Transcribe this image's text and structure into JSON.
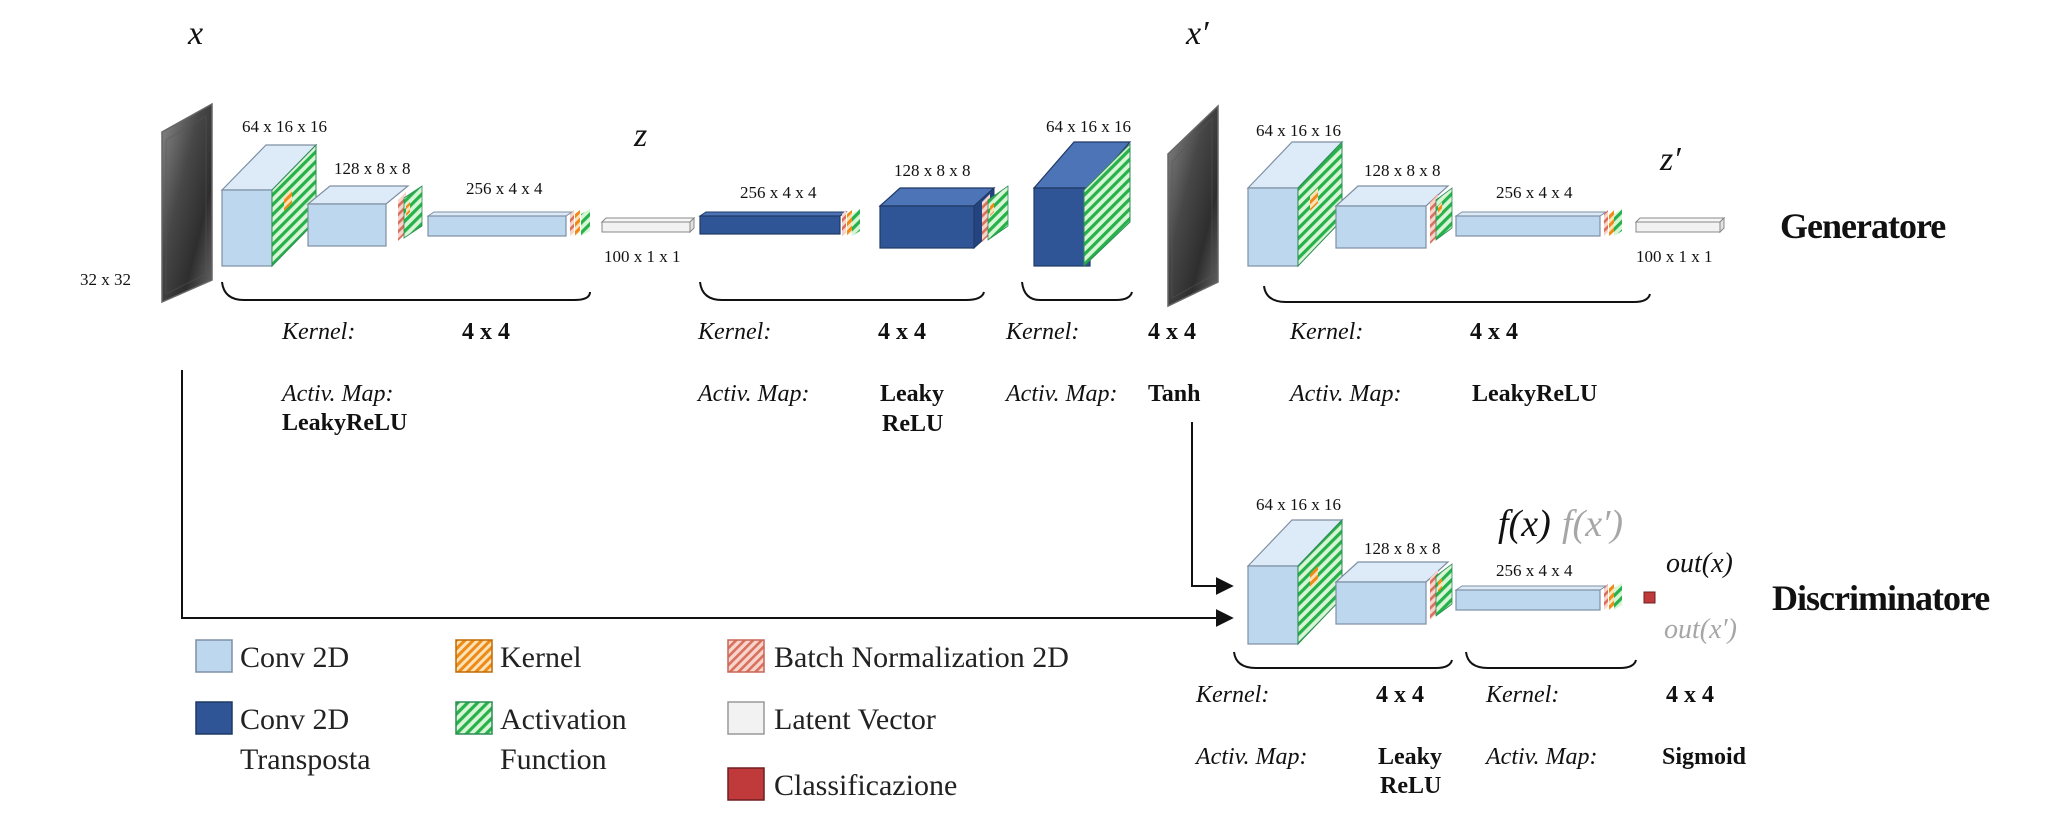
{
  "inputs": {
    "x": "x",
    "x_prime": "x′",
    "z": "z",
    "z_prime": "z′",
    "input_size": "32 x 32"
  },
  "dims": {
    "d64": "64 x 16 x 16",
    "d128": "128 x 8 x 8",
    "d256": "256 x 4 x 4",
    "d100": "100 x 1 x 1"
  },
  "labels": {
    "kernel": "Kernel:",
    "activ_map": "Activ. Map:",
    "kernel_size": "4 x 4",
    "leaky_relu": "LeakyReLU",
    "leaky": "Leaky",
    "relu": "ReLU",
    "tanh": "Tanh",
    "sigmoid": "Sigmoid"
  },
  "sections": {
    "generator": "Generatore",
    "discriminator": "Discriminatore"
  },
  "outputs": {
    "f_x": "f(x)",
    "f_x_prime": "f(x′)",
    "out_x": "out(x)",
    "out_x_prime": "out(x′)"
  },
  "legend": {
    "conv2d": "Conv 2D",
    "conv2d_transposed_1": "Conv 2D",
    "conv2d_transposed_2": "Transposta",
    "kernel": "Kernel",
    "activation_1": "Activation",
    "activation_2": "Function",
    "batch_norm": "Batch Normalization 2D",
    "latent": "Latent Vector",
    "classification": "Classificazione"
  },
  "colors": {
    "conv2d": "#bdd7ee",
    "conv2d_transposed": "#2f5597",
    "kernel": "#f4a531",
    "activation": "#2ecc71",
    "batch_norm": "#e8917e",
    "latent": "#f2f2f2",
    "classification": "#c0393b"
  }
}
